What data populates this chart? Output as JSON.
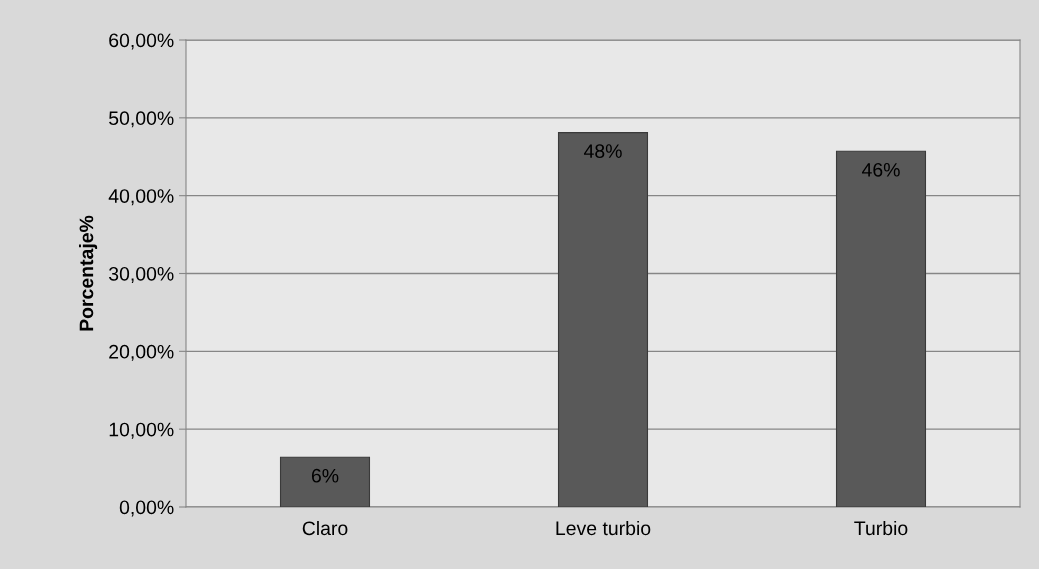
{
  "chart_data": {
    "type": "bar",
    "ylabel": "Porcentaje%",
    "categories": [
      "Claro",
      "Leve turbio",
      "Turbio"
    ],
    "values": [
      6.4,
      48.1,
      45.7
    ],
    "value_labels": [
      "6%",
      "48%",
      "46%"
    ],
    "color": "#595959",
    "ylim": [
      0,
      60
    ],
    "yticks": [
      {
        "value": 0,
        "label": "0,00%"
      },
      {
        "value": 10,
        "label": "10,00%"
      },
      {
        "value": 20,
        "label": "20,00%"
      },
      {
        "value": 30,
        "label": "30,00%"
      },
      {
        "value": 40,
        "label": "40,00%"
      },
      {
        "value": 50,
        "label": "50,00%"
      },
      {
        "value": 60,
        "label": "60,00%"
      }
    ],
    "grid": "y",
    "legend": false
  }
}
